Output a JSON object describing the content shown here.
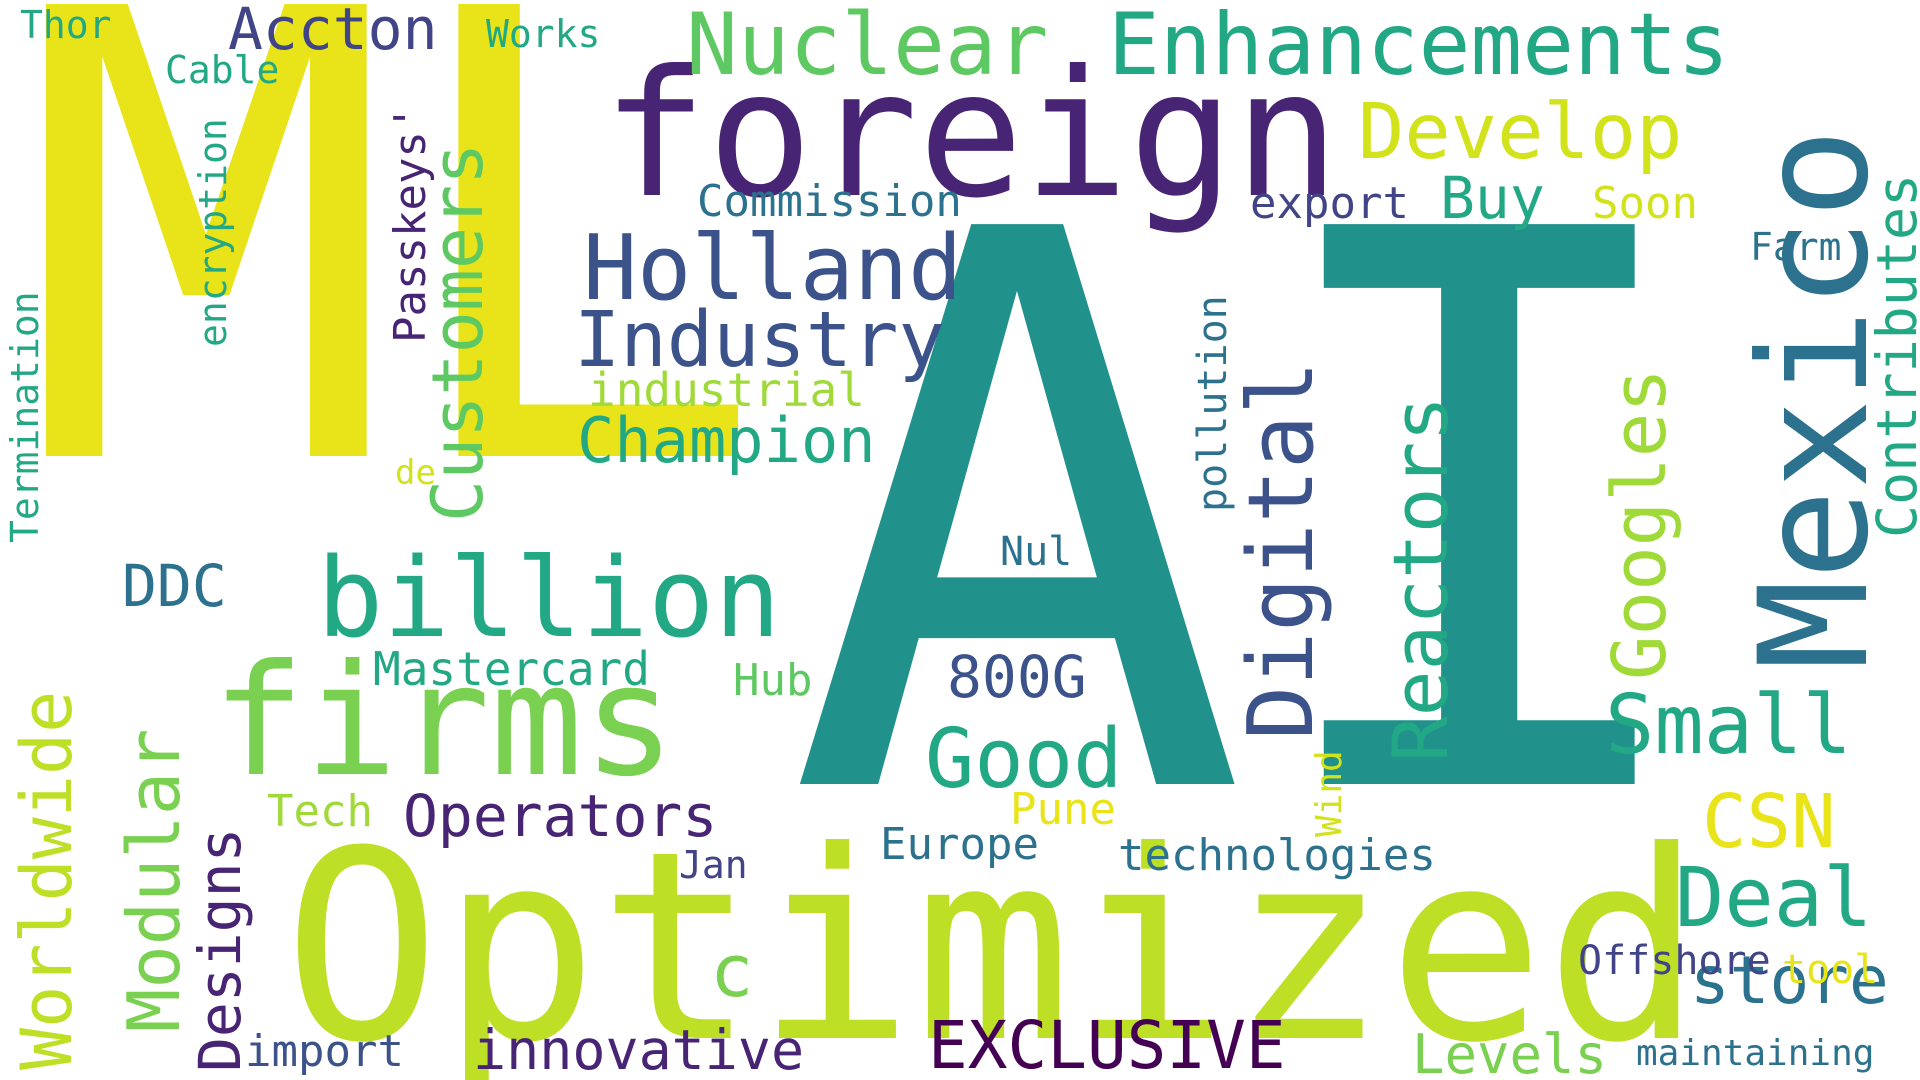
{
  "words": [
    {
      "text": "AI",
      "color": "#21918c"
    },
    {
      "text": "ML",
      "color": "#e8e419"
    },
    {
      "text": "Optimized",
      "color": "#bddf26"
    },
    {
      "text": "foreign",
      "color": "#482475"
    },
    {
      "text": "Mexico",
      "color": "#2c728e"
    },
    {
      "text": "firms",
      "color": "#7ad151"
    },
    {
      "text": "billion",
      "color": "#22a884"
    },
    {
      "text": "Nuclear",
      "color": "#5ec962"
    },
    {
      "text": "Enhancements",
      "color": "#22a884"
    },
    {
      "text": "Digital",
      "color": "#3b528b"
    },
    {
      "text": "Holland",
      "color": "#3b528b"
    },
    {
      "text": "Industry",
      "color": "#3b528b"
    },
    {
      "text": "Develop",
      "color": "#d2e21b"
    },
    {
      "text": "Customers",
      "color": "#5ec962"
    },
    {
      "text": "Champion",
      "color": "#22a884"
    },
    {
      "text": "Reactors",
      "color": "#22a884"
    },
    {
      "text": "Googles",
      "color": "#a0da39"
    },
    {
      "text": "Contributes",
      "color": "#22a884"
    },
    {
      "text": "Worldwide",
      "color": "#bddf26"
    },
    {
      "text": "Modular",
      "color": "#7ad151"
    },
    {
      "text": "Good",
      "color": "#22a884"
    },
    {
      "text": "Small",
      "color": "#22a884"
    },
    {
      "text": "Deal",
      "color": "#22a884"
    },
    {
      "text": "CSN",
      "color": "#e8e419"
    },
    {
      "text": "store",
      "color": "#2c728e"
    },
    {
      "text": "EXCLUSIVE",
      "color": "#440154"
    },
    {
      "text": "innovative",
      "color": "#482475"
    },
    {
      "text": "Operators",
      "color": "#482475"
    },
    {
      "text": "Designs",
      "color": "#482475"
    },
    {
      "text": "Levels",
      "color": "#7ad151"
    },
    {
      "text": "Accton",
      "color": "#414487"
    },
    {
      "text": "Buy",
      "color": "#22a884"
    },
    {
      "text": "export",
      "color": "#414487"
    },
    {
      "text": "Soon",
      "color": "#d2e21b"
    },
    {
      "text": "Commission",
      "color": "#2c728e"
    },
    {
      "text": "Passkeys'",
      "color": "#482475"
    },
    {
      "text": "encryption",
      "color": "#22a884"
    },
    {
      "text": "Termination",
      "color": "#22a884"
    },
    {
      "text": "Cable",
      "color": "#22a884"
    },
    {
      "text": "Works",
      "color": "#22a884"
    },
    {
      "text": "Thor",
      "color": "#22a884"
    },
    {
      "text": "industrial",
      "color": "#a0da39"
    },
    {
      "text": "pollution",
      "color": "#2c728e"
    },
    {
      "text": "Farm",
      "color": "#2c728e"
    },
    {
      "text": "DDC",
      "color": "#2c728e"
    },
    {
      "text": "Mastercard",
      "color": "#22a884"
    },
    {
      "text": "Hub",
      "color": "#5ec962"
    },
    {
      "text": "800G",
      "color": "#3b528b"
    },
    {
      "text": "Tech",
      "color": "#a0da39"
    },
    {
      "text": "Jan",
      "color": "#414487"
    },
    {
      "text": "Europe",
      "color": "#2c728e"
    },
    {
      "text": "Pune",
      "color": "#e8e419"
    },
    {
      "text": "Wind",
      "color": "#d2e21b"
    },
    {
      "text": "technologies",
      "color": "#2c728e"
    },
    {
      "text": "Offshore",
      "color": "#414487"
    },
    {
      "text": "tool",
      "color": "#e8e419"
    },
    {
      "text": "maintaining",
      "color": "#2c728e"
    },
    {
      "text": "import",
      "color": "#3b528b"
    },
    {
      "text": "c",
      "color": "#7ad151"
    },
    {
      "text": "de",
      "color": "#d2e21b"
    },
    {
      "text": "Nul",
      "color": "#2c728e"
    }
  ]
}
